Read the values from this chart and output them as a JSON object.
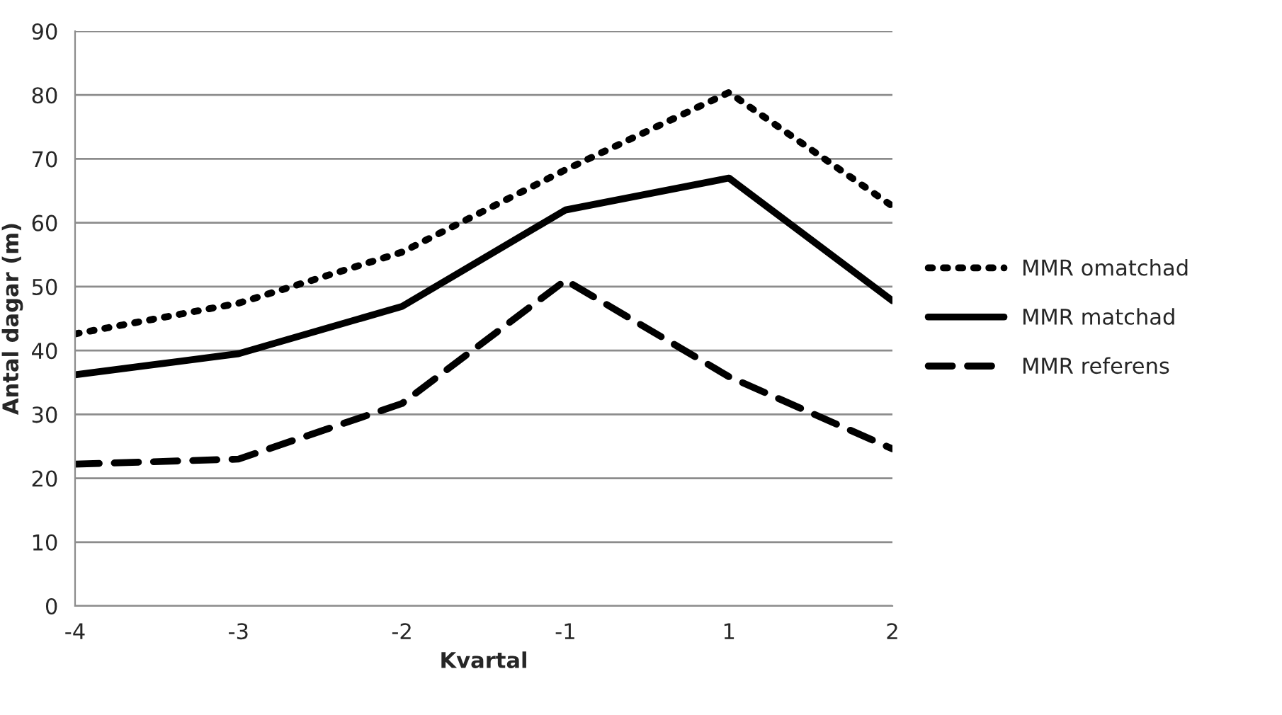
{
  "chart_data": {
    "type": "line",
    "xlabel": "Kvartal",
    "ylabel": "Antal dagar (m)",
    "categories": [
      "-4",
      "-3",
      "-2",
      "-1",
      "1",
      "2"
    ],
    "series": [
      {
        "name": "MMR omatchad",
        "color": "#000000",
        "line_style": "dotted",
        "values": [
          42.6,
          47.4,
          55.4,
          68.3,
          80.4,
          62.6
        ]
      },
      {
        "name": "MMR matchad",
        "color": "#000000",
        "line_style": "solid",
        "values": [
          36.2,
          39.5,
          46.9,
          62.0,
          67.0,
          47.8
        ]
      },
      {
        "name": "MMR referens",
        "color": "#000000",
        "line_style": "dashed",
        "values": [
          22.2,
          23.0,
          31.7,
          51.0,
          35.9,
          24.6
        ]
      }
    ],
    "ylim": [
      0,
      90
    ],
    "yticks": [
      0,
      10,
      20,
      30,
      40,
      50,
      60,
      70,
      80,
      90
    ],
    "grid": "y",
    "legend": "right"
  }
}
